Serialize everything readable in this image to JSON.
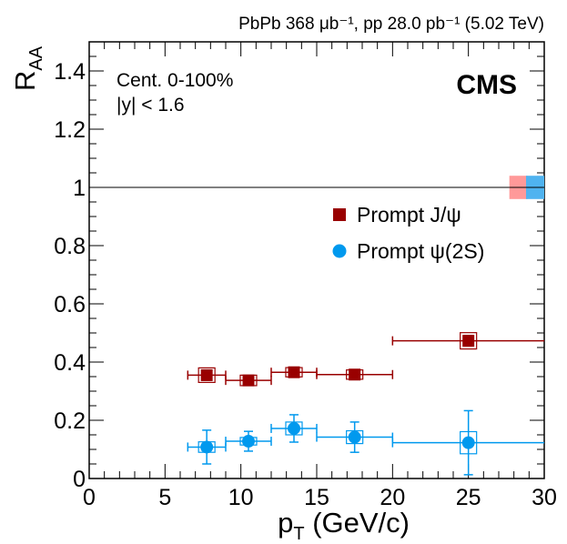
{
  "chart_data": {
    "type": "scatter",
    "header": "PbPb 368 μb⁻¹, pp 28.0 pb⁻¹ (5.02 TeV)",
    "experiment": "CMS",
    "annotations": [
      "Cent. 0-100%",
      "|y| < 1.6"
    ],
    "xlabel": "p_T (GeV/c)",
    "ylabel": "R_AA",
    "xlim": [
      0,
      30
    ],
    "ylim": [
      0,
      1.5
    ],
    "x_ticks": [
      0,
      5,
      10,
      15,
      20,
      25,
      30
    ],
    "y_ticks": [
      0,
      0.2,
      0.4,
      0.6,
      0.8,
      1,
      1.2,
      1.4
    ],
    "y_tick_labels": [
      "0",
      "0.2",
      "0.4",
      "0.6",
      "0.8",
      "1",
      "1.2",
      "1.4"
    ],
    "reference_line": 1,
    "legend_position": "right",
    "series": [
      {
        "name": "Prompt J/ψ",
        "marker": "square",
        "color": "#990000",
        "points": [
          {
            "x": 7.75,
            "xlo": 6.5,
            "xhi": 9,
            "y": 0.355,
            "stat": 0.012,
            "syst": 0.025
          },
          {
            "x": 10.5,
            "xlo": 9,
            "xhi": 12,
            "y": 0.337,
            "stat": 0.012,
            "syst": 0.018
          },
          {
            "x": 13.5,
            "xlo": 12,
            "xhi": 15,
            "y": 0.365,
            "stat": 0.012,
            "syst": 0.016
          },
          {
            "x": 17.5,
            "xlo": 15,
            "xhi": 20,
            "y": 0.357,
            "stat": 0.012,
            "syst": 0.016
          },
          {
            "x": 25,
            "xlo": 20,
            "xhi": 30,
            "y": 0.473,
            "stat": 0.018,
            "syst": 0.028
          }
        ]
      },
      {
        "name": "Prompt ψ(2S)",
        "marker": "circle",
        "color": "#0099ee",
        "points": [
          {
            "x": 7.75,
            "xlo": 6.5,
            "xhi": 9,
            "y": 0.108,
            "stat": 0.058,
            "syst": 0.018
          },
          {
            "x": 10.5,
            "xlo": 9,
            "xhi": 12,
            "y": 0.128,
            "stat": 0.034,
            "syst": 0.013
          },
          {
            "x": 13.5,
            "xlo": 12,
            "xhi": 15,
            "y": 0.172,
            "stat": 0.047,
            "syst": 0.022
          },
          {
            "x": 17.5,
            "xlo": 15,
            "xhi": 20,
            "y": 0.142,
            "stat": 0.052,
            "syst": 0.022
          },
          {
            "x": 25,
            "xlo": 20,
            "xhi": 30,
            "y": 0.123,
            "stat": 0.11,
            "syst": 0.038
          }
        ]
      }
    ],
    "global_uncertainty_boxes": [
      {
        "series": "Prompt J/ψ",
        "color": "#ff9999",
        "xlo": 27.7,
        "xhi": 28.9,
        "ylo": 0.96,
        "yhi": 1.04
      },
      {
        "series": "Prompt ψ(2S)",
        "color": "#4fb3f0",
        "xlo": 28.8,
        "xhi": 30,
        "ylo": 0.96,
        "yhi": 1.04
      }
    ]
  }
}
